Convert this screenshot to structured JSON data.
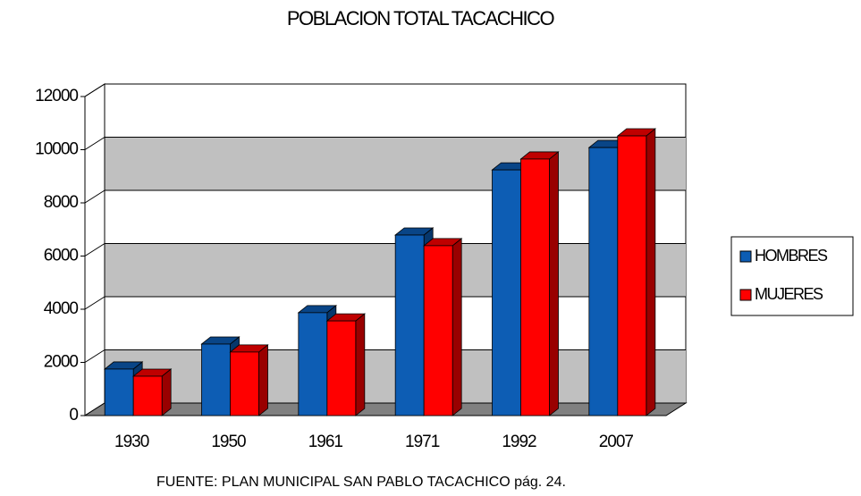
{
  "chart_data": {
    "type": "bar",
    "title": "POBLACION TOTAL TACACHICO",
    "categories": [
      "1930",
      "1950",
      "1961",
      "1971",
      "1992",
      "2007"
    ],
    "series": [
      {
        "name": "HOMBRES",
        "color": "#0d5db4",
        "values": [
          1750,
          2690,
          3870,
          6790,
          9240,
          10080
        ]
      },
      {
        "name": "MUJERES",
        "color": "#ff0000",
        "values": [
          1480,
          2390,
          3560,
          6390,
          9650,
          10520
        ]
      }
    ],
    "ylim": [
      0,
      12000
    ],
    "yticks": [
      0,
      2000,
      4000,
      6000,
      8000,
      10000,
      12000
    ],
    "grid": true,
    "legend": "right",
    "source": "FUENTE: PLAN MUNICIPAL SAN PABLO TACACHICO  pág. 24."
  }
}
